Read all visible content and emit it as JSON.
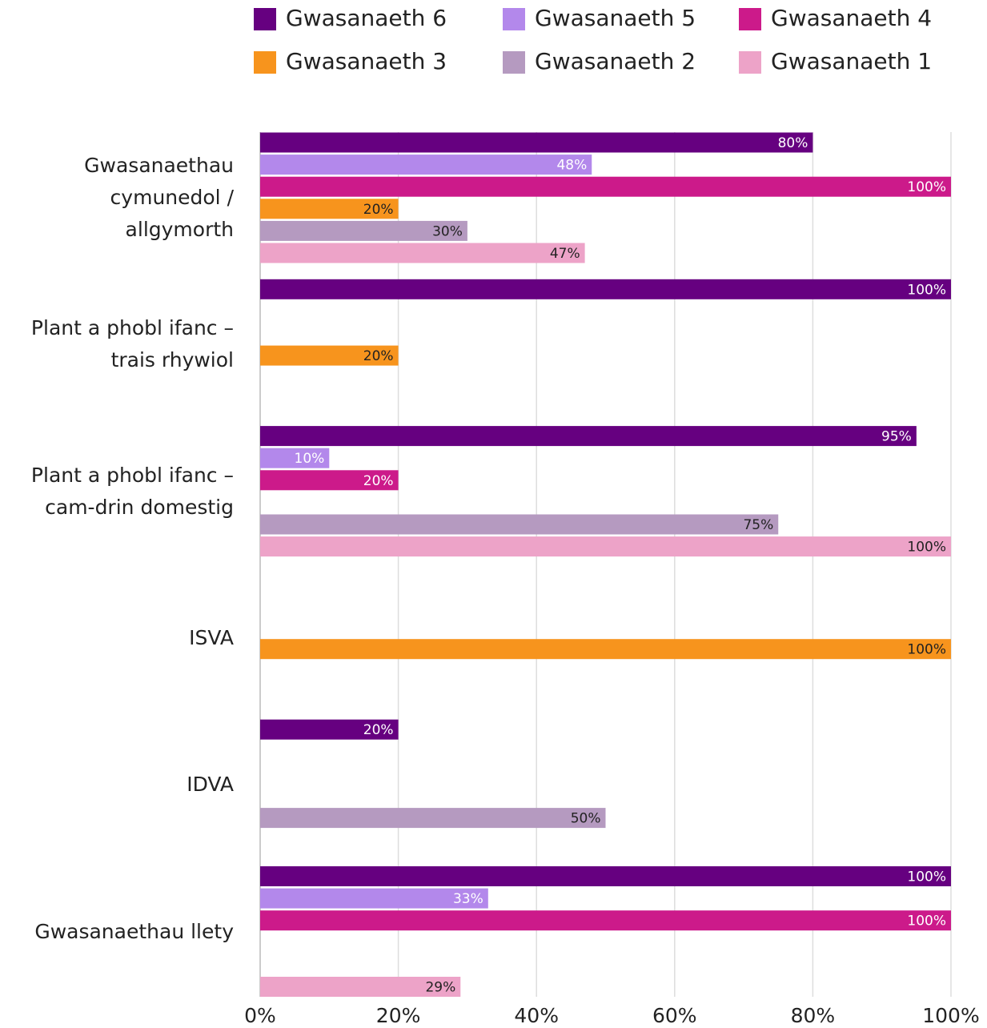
{
  "chart_data": {
    "type": "barh",
    "categories": [
      "Gwasanaethau cymunedol / allgymorth",
      "Plant a phobl ifanc – trais rhywiol",
      "Plant a phobl ifanc – cam-drin domestig",
      "ISVA",
      "IDVA",
      "Gwasanaethau llety"
    ],
    "series": [
      {
        "name": "Gwasanaeth 6",
        "color": "#660080",
        "label_color": "#ffffff",
        "values": [
          80,
          100,
          95,
          null,
          20,
          100
        ],
        "value_labels": [
          "80%",
          "100%",
          "95%",
          null,
          "20%",
          "100%"
        ]
      },
      {
        "name": "Gwasanaeth 5",
        "color": "#b388eb",
        "label_color": "#ffffff",
        "values": [
          48,
          null,
          10,
          null,
          null,
          33
        ],
        "value_labels": [
          "48%",
          null,
          "10%",
          null,
          null,
          "33%"
        ]
      },
      {
        "name": "Gwasanaeth 4",
        "color": "#cc1a8a",
        "label_color": "#ffffff",
        "values": [
          100,
          null,
          20,
          null,
          null,
          100
        ],
        "value_labels": [
          "100%",
          null,
          "20%",
          null,
          null,
          "100%"
        ]
      },
      {
        "name": "Gwasanaeth 3",
        "color": "#f7941d",
        "label_color": "#222222",
        "values": [
          20,
          20,
          null,
          100,
          null,
          null
        ],
        "value_labels": [
          "20%",
          "20%",
          null,
          "100%",
          null,
          null
        ]
      },
      {
        "name": "Gwasanaeth 2",
        "color": "#b59ac0",
        "label_color": "#222222",
        "values": [
          30,
          null,
          75,
          null,
          50,
          null
        ],
        "value_labels": [
          "30%",
          null,
          "75%",
          null,
          "50%",
          null
        ]
      },
      {
        "name": "Gwasanaeth 1",
        "color": "#eda3c8",
        "label_color": "#222222",
        "values": [
          47,
          null,
          100,
          null,
          null,
          29
        ],
        "value_labels": [
          "47%",
          null,
          "100%",
          null,
          null,
          "29%"
        ]
      }
    ],
    "xlim": [
      0,
      100
    ],
    "xticks": [
      {
        "value": 0,
        "label": "0%"
      },
      {
        "value": 20,
        "label": "20%"
      },
      {
        "value": 40,
        "label": "40%"
      },
      {
        "value": 60,
        "label": "60%"
      },
      {
        "value": 80,
        "label": "80%"
      },
      {
        "value": 100,
        "label": "100%"
      }
    ],
    "grid": true,
    "legend": "top"
  }
}
